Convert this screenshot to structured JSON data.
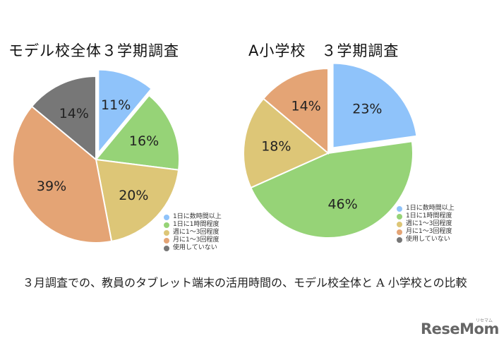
{
  "chart_data": [
    {
      "type": "pie",
      "title": "モデル校全体３学期調査",
      "slices": [
        {
          "label": "1日に数時間以上",
          "value": 11,
          "color": "#8fc3fa",
          "label_text": "11%"
        },
        {
          "label": "1日に1時間程度",
          "value": 16,
          "color": "#96d377",
          "label_text": "16%"
        },
        {
          "label": "週に1〜3回程度",
          "value": 20,
          "color": "#ddc677",
          "label_text": "20%"
        },
        {
          "label": "月に1〜3回程度",
          "value": 39,
          "color": "#e4a475",
          "label_text": "39%"
        },
        {
          "label": "使用していない",
          "value": 14,
          "color": "#777777",
          "label_text": "14%"
        }
      ],
      "exploded_slice": 0,
      "legend_placement": "bottom-right"
    },
    {
      "type": "pie",
      "title": "A小学校　３学期調査",
      "slices": [
        {
          "label": "1日に数時間以上",
          "value": 23,
          "color": "#8fc3fa",
          "label_text": "23%"
        },
        {
          "label": "1日に1時間程度",
          "value": 46,
          "color": "#96d377",
          "label_text": "46%"
        },
        {
          "label": "週に1〜3回程度",
          "value": 18,
          "color": "#ddc677",
          "label_text": "18%"
        },
        {
          "label": "月に1〜3回程度",
          "value": 14,
          "color": "#e4a475",
          "label_text": "14%"
        },
        {
          "label": "使用していない",
          "value": 0,
          "color": "#777777",
          "label_text": ""
        }
      ],
      "exploded_slice": 0,
      "legend_placement": "bottom-right"
    }
  ],
  "caption": "３月調査での、教員のタブレット端末の活用時間の、モデル校全体と A 小学校との比較",
  "logo": {
    "text_main": "ReseMom",
    "text_sub": "リセマム"
  }
}
